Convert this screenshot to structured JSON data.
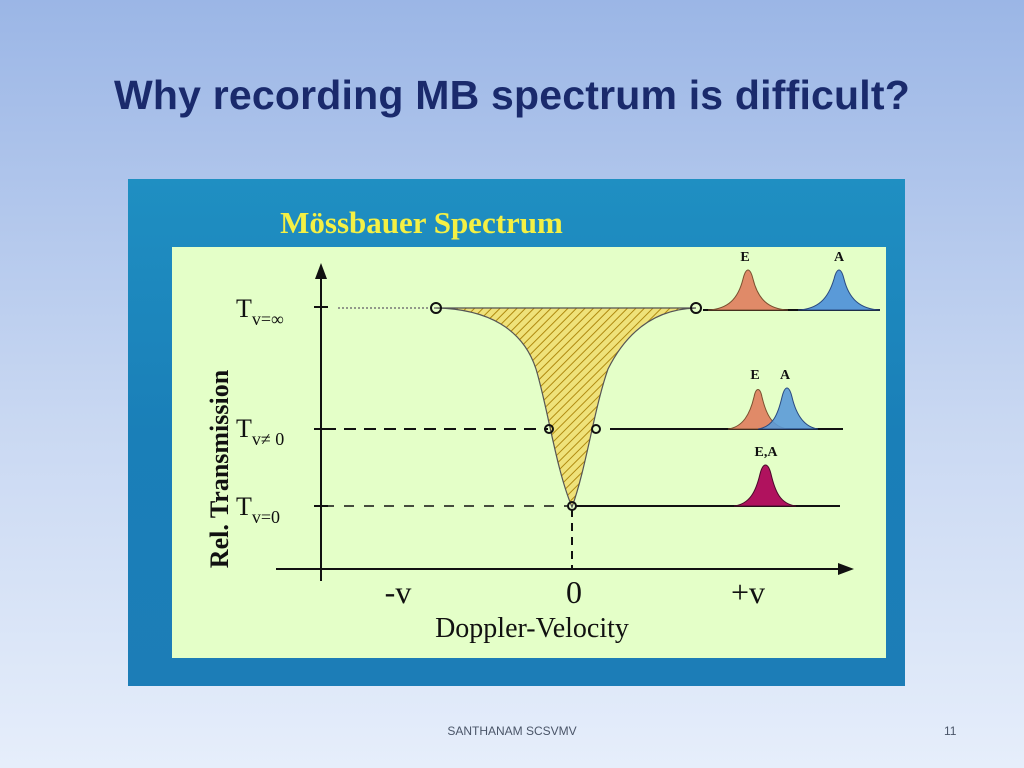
{
  "slide": {
    "title": "Why recording MB spectrum is difficult?",
    "footer_left": "SANTHANAM SCSVMV",
    "slide_number": "11"
  },
  "figure": {
    "title": "Mössbauer Spectrum",
    "y_axis_label": "Rel. Transmission",
    "x_axis_label": "Doppler-Velocity",
    "x_ticks": [
      "-v",
      "0",
      "+v"
    ],
    "levels": [
      {
        "T": "T",
        "sub": "v=∞"
      },
      {
        "T": "T",
        "sub": "v≠ 0"
      },
      {
        "T": "T",
        "sub": "v=0"
      }
    ],
    "peaks_far": {
      "left": "E",
      "right": "A"
    },
    "peaks_near": {
      "left": "E",
      "right": "A"
    },
    "peaks_overlap": "E,A",
    "colors": {
      "frame": "#1c80b9",
      "plot_bg": "#e4ffc8",
      "title": "#f4f044",
      "hatch": "#e8c830",
      "peak_E": "#e07a5a",
      "peak_A": "#4a8fd6",
      "peak_EA": "#b0125e"
    }
  }
}
